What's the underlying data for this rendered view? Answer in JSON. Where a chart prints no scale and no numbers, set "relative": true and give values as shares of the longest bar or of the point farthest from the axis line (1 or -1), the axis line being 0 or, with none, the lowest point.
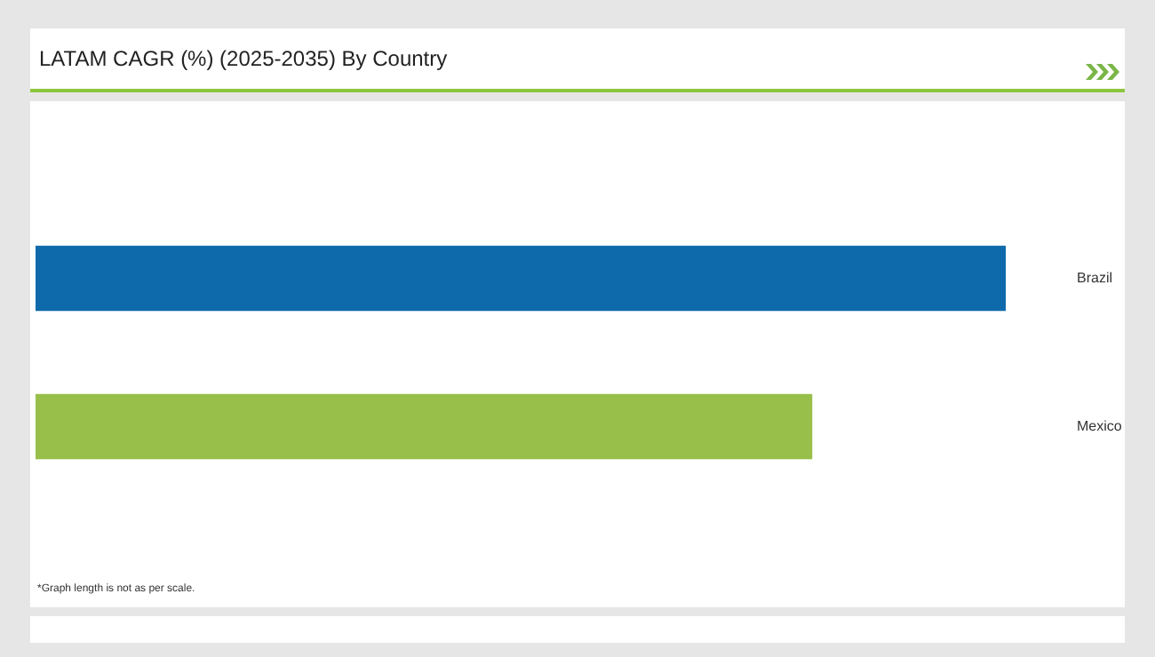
{
  "chart_data": {
    "type": "bar",
    "title": "LATAM CAGR (%) (2025-2035) By Country",
    "orientation": "horizontal",
    "relative": true,
    "categories": [
      "Brazil",
      "Mexico"
    ],
    "values": [
      1,
      0.8
    ],
    "colors": [
      "#0e6aab",
      "#97bf4a"
    ],
    "legend": false,
    "annotations": [
      "*Graph length is not as per scale."
    ]
  }
}
